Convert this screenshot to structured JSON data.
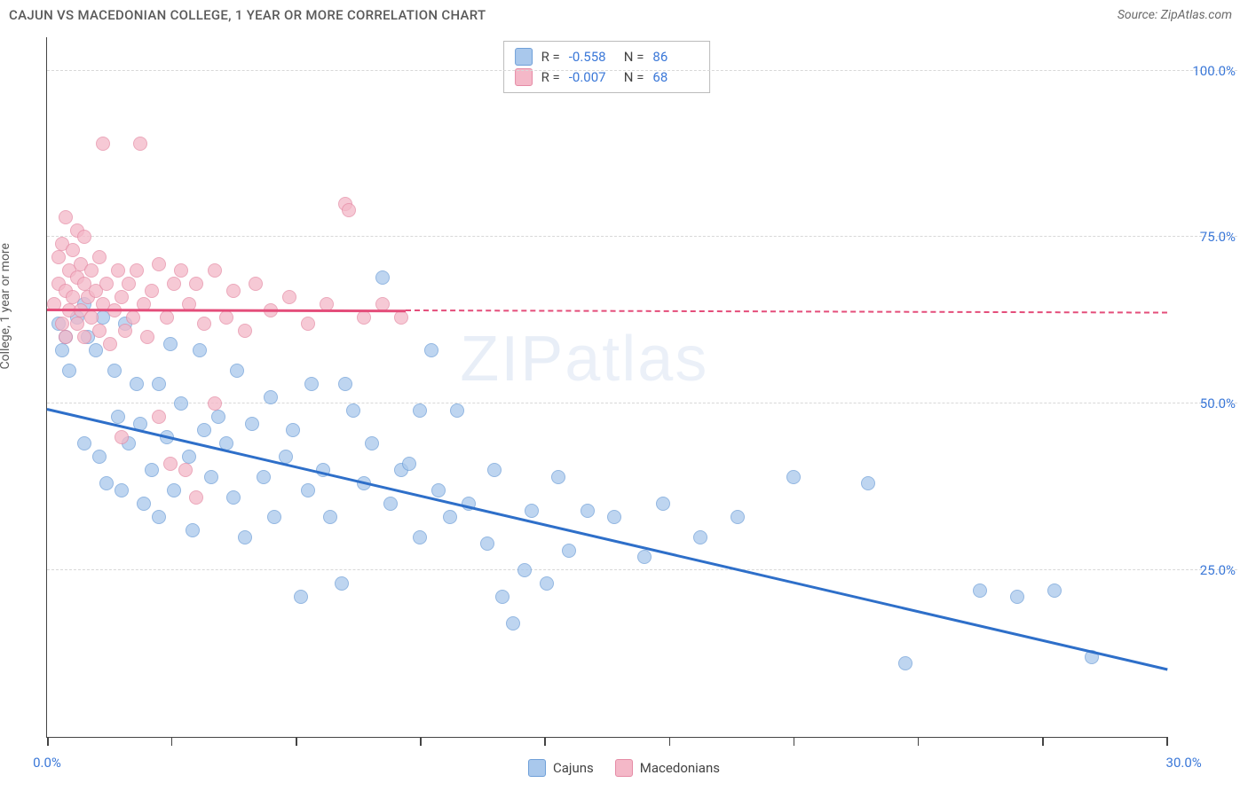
{
  "header": {
    "title": "CAJUN VS MACEDONIAN COLLEGE, 1 YEAR OR MORE CORRELATION CHART",
    "source": "Source: ZipAtlas.com"
  },
  "chart": {
    "type": "scatter",
    "ylabel": "College, 1 year or more",
    "xlim": [
      0,
      30
    ],
    "ylim": [
      0,
      105
    ],
    "background_color": "#ffffff",
    "grid_color": "#d8d8d8",
    "axis_color": "#444444",
    "xtick_positions": [
      0,
      3.33,
      6.67,
      10,
      13.33,
      16.67,
      20,
      23.33,
      26.67,
      30
    ],
    "xtick_labels": {
      "0": "0.0%",
      "30": "30.0%"
    },
    "ytick_positions": [
      25,
      50,
      75,
      100
    ],
    "ytick_labels": {
      "25": "25.0%",
      "50": "50.0%",
      "75": "75.0%",
      "100": "100.0%"
    },
    "watermark": {
      "text_bold": "ZIP",
      "text_thin": "atlas"
    },
    "series": {
      "cajuns": {
        "label": "Cajuns",
        "fill": "#a9c8ec",
        "stroke": "#6f9fd8",
        "reg_color": "#2e6fc9",
        "reg_start": [
          0,
          49
        ],
        "reg_end": [
          30,
          10
        ],
        "reg_solid_end_x": 30,
        "R": "-0.558",
        "N": "86",
        "points": [
          [
            0.3,
            62
          ],
          [
            0.4,
            58
          ],
          [
            0.5,
            60
          ],
          [
            0.6,
            55
          ],
          [
            0.8,
            63
          ],
          [
            1.0,
            44
          ],
          [
            1.0,
            65
          ],
          [
            1.1,
            60
          ],
          [
            1.3,
            58
          ],
          [
            1.4,
            42
          ],
          [
            1.5,
            63
          ],
          [
            1.6,
            38
          ],
          [
            1.8,
            55
          ],
          [
            1.9,
            48
          ],
          [
            2.0,
            37
          ],
          [
            2.1,
            62
          ],
          [
            2.2,
            44
          ],
          [
            2.4,
            53
          ],
          [
            2.5,
            47
          ],
          [
            2.6,
            35
          ],
          [
            2.8,
            40
          ],
          [
            3.0,
            33
          ],
          [
            3.0,
            53
          ],
          [
            3.2,
            45
          ],
          [
            3.3,
            59
          ],
          [
            3.4,
            37
          ],
          [
            3.6,
            50
          ],
          [
            3.8,
            42
          ],
          [
            3.9,
            31
          ],
          [
            4.1,
            58
          ],
          [
            4.2,
            46
          ],
          [
            4.4,
            39
          ],
          [
            4.6,
            48
          ],
          [
            4.8,
            44
          ],
          [
            5.0,
            36
          ],
          [
            5.1,
            55
          ],
          [
            5.3,
            30
          ],
          [
            5.5,
            47
          ],
          [
            5.8,
            39
          ],
          [
            6.0,
            51
          ],
          [
            6.1,
            33
          ],
          [
            6.4,
            42
          ],
          [
            6.6,
            46
          ],
          [
            6.8,
            21
          ],
          [
            7.0,
            37
          ],
          [
            7.1,
            53
          ],
          [
            7.4,
            40
          ],
          [
            7.6,
            33
          ],
          [
            7.9,
            23
          ],
          [
            8.0,
            53
          ],
          [
            8.2,
            49
          ],
          [
            8.5,
            38
          ],
          [
            8.7,
            44
          ],
          [
            9.0,
            69
          ],
          [
            9.2,
            35
          ],
          [
            9.5,
            40
          ],
          [
            9.7,
            41
          ],
          [
            10.0,
            49
          ],
          [
            10.0,
            30
          ],
          [
            10.3,
            58
          ],
          [
            10.5,
            37
          ],
          [
            10.8,
            33
          ],
          [
            11.0,
            49
          ],
          [
            11.3,
            35
          ],
          [
            11.8,
            29
          ],
          [
            12.0,
            40
          ],
          [
            12.2,
            21
          ],
          [
            12.5,
            17
          ],
          [
            12.8,
            25
          ],
          [
            13.0,
            34
          ],
          [
            13.4,
            23
          ],
          [
            13.7,
            39
          ],
          [
            14.0,
            28
          ],
          [
            14.5,
            34
          ],
          [
            15.2,
            33
          ],
          [
            16.0,
            27
          ],
          [
            16.5,
            35
          ],
          [
            17.5,
            30
          ],
          [
            18.5,
            33
          ],
          [
            20.0,
            39
          ],
          [
            22.0,
            38
          ],
          [
            23.0,
            11
          ],
          [
            25.0,
            22
          ],
          [
            26.0,
            21
          ],
          [
            27.0,
            22
          ],
          [
            28.0,
            12
          ]
        ]
      },
      "macedonians": {
        "label": "Macedonians",
        "fill": "#f4b8c8",
        "stroke": "#e58ba5",
        "reg_color": "#e44d7a",
        "reg_start": [
          0,
          64
        ],
        "reg_end": [
          30,
          63.5
        ],
        "reg_solid_end_x": 9.6,
        "R": "-0.007",
        "N": "68",
        "points": [
          [
            0.2,
            65
          ],
          [
            0.3,
            72
          ],
          [
            0.3,
            68
          ],
          [
            0.4,
            62
          ],
          [
            0.4,
            74
          ],
          [
            0.5,
            67
          ],
          [
            0.5,
            60
          ],
          [
            0.5,
            78
          ],
          [
            0.6,
            64
          ],
          [
            0.6,
            70
          ],
          [
            0.7,
            73
          ],
          [
            0.7,
            66
          ],
          [
            0.8,
            62
          ],
          [
            0.8,
            69
          ],
          [
            0.8,
            76
          ],
          [
            0.9,
            64
          ],
          [
            0.9,
            71
          ],
          [
            1.0,
            68
          ],
          [
            1.0,
            60
          ],
          [
            1.0,
            75
          ],
          [
            1.1,
            66
          ],
          [
            1.2,
            63
          ],
          [
            1.2,
            70
          ],
          [
            1.3,
            67
          ],
          [
            1.4,
            61
          ],
          [
            1.4,
            72
          ],
          [
            1.5,
            65
          ],
          [
            1.5,
            89
          ],
          [
            1.6,
            68
          ],
          [
            1.7,
            59
          ],
          [
            1.8,
            64
          ],
          [
            1.9,
            70
          ],
          [
            2.0,
            66
          ],
          [
            2.0,
            45
          ],
          [
            2.1,
            61
          ],
          [
            2.2,
            68
          ],
          [
            2.3,
            63
          ],
          [
            2.4,
            70
          ],
          [
            2.5,
            89
          ],
          [
            2.6,
            65
          ],
          [
            2.7,
            60
          ],
          [
            2.8,
            67
          ],
          [
            3.0,
            48
          ],
          [
            3.0,
            71
          ],
          [
            3.2,
            63
          ],
          [
            3.3,
            41
          ],
          [
            3.4,
            68
          ],
          [
            3.6,
            70
          ],
          [
            3.7,
            40
          ],
          [
            3.8,
            65
          ],
          [
            4.0,
            68
          ],
          [
            4.0,
            36
          ],
          [
            4.2,
            62
          ],
          [
            4.5,
            70
          ],
          [
            4.5,
            50
          ],
          [
            4.8,
            63
          ],
          [
            5.0,
            67
          ],
          [
            5.3,
            61
          ],
          [
            5.6,
            68
          ],
          [
            6.0,
            64
          ],
          [
            6.5,
            66
          ],
          [
            7.0,
            62
          ],
          [
            7.5,
            65
          ],
          [
            8.0,
            80
          ],
          [
            8.1,
            79
          ],
          [
            8.5,
            63
          ],
          [
            9.0,
            65
          ],
          [
            9.5,
            63
          ]
        ]
      }
    }
  }
}
